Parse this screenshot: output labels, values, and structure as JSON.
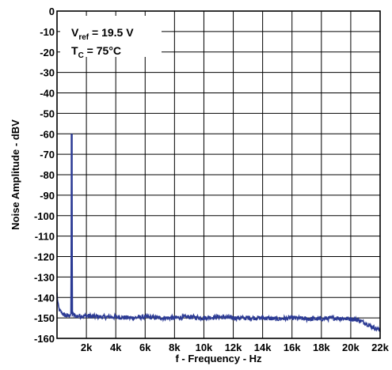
{
  "chart_data": {
    "type": "line",
    "title": "",
    "xlabel": "f - Frequency - Hz",
    "ylabel": "Noise Amplitude - dBV",
    "xlim": [
      0,
      22000
    ],
    "ylim": [
      -160,
      0
    ],
    "grid": true,
    "x_ticks": [
      2000,
      4000,
      6000,
      8000,
      10000,
      12000,
      14000,
      16000,
      18000,
      20000,
      22000
    ],
    "x_tick_labels": [
      "2k",
      "4k",
      "6k",
      "8k",
      "10k",
      "12k",
      "14k",
      "16k",
      "18k",
      "20k",
      "22k"
    ],
    "y_ticks": [
      0,
      -10,
      -20,
      -30,
      -40,
      -50,
      -60,
      -70,
      -80,
      -90,
      -100,
      -110,
      -120,
      -130,
      -140,
      -150,
      -160
    ],
    "y_tick_labels": [
      "0",
      "-10",
      "-20",
      "-30",
      "-40",
      "-50",
      "-60",
      "-70",
      "-80",
      "-90",
      "-100",
      "-110",
      "-120",
      "-130",
      "-140",
      "-150",
      "-160"
    ],
    "annotations": [
      {
        "main": "V",
        "sub": "ref",
        "rest": " = 19.5 V"
      },
      {
        "main": "T",
        "sub": "C",
        "rest": " = 75°C"
      }
    ],
    "series": [
      {
        "color": "#2b3a94",
        "x": [
          0,
          30,
          80,
          150,
          250,
          400,
          600,
          800,
          950,
          1000,
          1050,
          1200,
          1500,
          2000,
          3000,
          4000,
          5000,
          6000,
          7000,
          8000,
          9000,
          10000,
          11000,
          12000,
          13000,
          14000,
          15000,
          16000,
          17000,
          18000,
          19000,
          20000,
          20500,
          21000,
          21500,
          22000
        ],
        "y": [
          -138,
          -141,
          -144,
          -146,
          -147,
          -148,
          -149,
          -149,
          -148,
          -60,
          -148,
          -149,
          -149,
          -149,
          -149.5,
          -149.5,
          -150,
          -149.5,
          -150,
          -150,
          -149.5,
          -150,
          -149.5,
          -150,
          -150,
          -150,
          -150.5,
          -150,
          -150.5,
          -150.5,
          -150,
          -150.5,
          -151,
          -152.5,
          -154.5,
          -156
        ]
      }
    ]
  }
}
